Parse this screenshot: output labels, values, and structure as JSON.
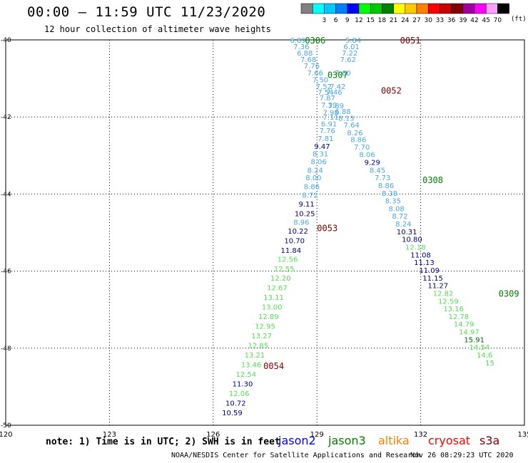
{
  "header": {
    "title": "00:00 – 11:59 UTC 11/23/2020",
    "subtitle": "12 hour collection of altimeter wave heights"
  },
  "colorbar": {
    "units": "(ft)",
    "bins": [
      {
        "label": "",
        "color": "#808080"
      },
      {
        "label": "3",
        "color": "#00ffff"
      },
      {
        "label": "6",
        "color": "#00c8ff"
      },
      {
        "label": "9",
        "color": "#0080ff"
      },
      {
        "label": "12",
        "color": "#0000ff"
      },
      {
        "label": "15",
        "color": "#00ff00"
      },
      {
        "label": "18",
        "color": "#00c800"
      },
      {
        "label": "21",
        "color": "#008000"
      },
      {
        "label": "24",
        "color": "#ffff00"
      },
      {
        "label": "27",
        "color": "#ffc800"
      },
      {
        "label": "30",
        "color": "#ff8000"
      },
      {
        "label": "33",
        "color": "#ff0000"
      },
      {
        "label": "36",
        "color": "#c80000"
      },
      {
        "label": "39",
        "color": "#800000"
      },
      {
        "label": "42",
        "color": "#a000a0"
      },
      {
        "label": "45",
        "color": "#ff00ff"
      },
      {
        "label": "70",
        "color": "#ffa0ff"
      },
      {
        "label": "",
        "color": "#000000"
      }
    ]
  },
  "map_axes": {
    "lon_labels": [
      "120",
      "123",
      "126",
      "129",
      "132",
      "135"
    ],
    "lon_values": [
      120,
      123,
      126,
      129,
      132,
      135
    ],
    "lat_labels": [
      "-40",
      "-42",
      "-44",
      "-46",
      "-48",
      "-50"
    ],
    "lat_values": [
      -40,
      -42,
      -44,
      -46,
      -48,
      -50
    ]
  },
  "tracks": [
    {
      "id": "t1",
      "color": "#4aa8e0",
      "points": [
        {
          "lon": 128.45,
          "lat": -40.0,
          "v": "6.89"
        },
        {
          "lon": 128.55,
          "lat": -40.17,
          "v": "7.36"
        },
        {
          "lon": 128.65,
          "lat": -40.33,
          "v": "6.88"
        },
        {
          "lon": 128.75,
          "lat": -40.5,
          "v": "7.68"
        },
        {
          "lon": 128.85,
          "lat": -40.67,
          "v": "7.76"
        },
        {
          "lon": 128.95,
          "lat": -40.85,
          "v": "7.66"
        },
        {
          "lon": 129.1,
          "lat": -41.03,
          "v": "7.50"
        },
        {
          "lon": 129.2,
          "lat": -41.2,
          "v": "7.52"
        },
        {
          "lon": 129.25,
          "lat": -41.35,
          "v": "7.54"
        },
        {
          "lon": 129.3,
          "lat": -41.5,
          "v": "7.87"
        },
        {
          "lon": 129.35,
          "lat": -41.68,
          "v": "7.39"
        },
        {
          "lon": 129.4,
          "lat": -41.88,
          "v": "7.98"
        },
        {
          "lon": 129.4,
          "lat": -42.0,
          "v": "7.11"
        },
        {
          "lon": 129.35,
          "lat": -42.17,
          "v": "6.91"
        },
        {
          "lon": 129.3,
          "lat": -42.35,
          "v": "7.76"
        },
        {
          "lon": 129.25,
          "lat": -42.55,
          "v": "7.81"
        }
      ]
    },
    {
      "id": "t1b",
      "color": "#000080",
      "points": [
        {
          "lon": 129.15,
          "lat": -42.75,
          "v": "9.47"
        }
      ]
    },
    {
      "id": "t1c",
      "color": "#4aa8e0",
      "points": [
        {
          "lon": 129.1,
          "lat": -42.95,
          "v": "8.31"
        },
        {
          "lon": 129.05,
          "lat": -43.15,
          "v": "8.06"
        },
        {
          "lon": 128.95,
          "lat": -43.37,
          "v": "8.24"
        },
        {
          "lon": 128.9,
          "lat": -43.57,
          "v": "8.00"
        },
        {
          "lon": 128.85,
          "lat": -43.8,
          "v": "8.86"
        },
        {
          "lon": 128.8,
          "lat": -44.02,
          "v": "8.72"
        }
      ]
    },
    {
      "id": "t2",
      "color": "#000080",
      "points": [
        {
          "lon": 128.7,
          "lat": -44.25,
          "v": "9.11"
        },
        {
          "lon": 128.65,
          "lat": -44.5,
          "v": "10.25"
        }
      ]
    },
    {
      "id": "t2b",
      "color": "#4aa8e0",
      "points": [
        {
          "lon": 128.55,
          "lat": -44.72,
          "v": "8.96"
        }
      ]
    },
    {
      "id": "t2c",
      "color": "#000080",
      "points": [
        {
          "lon": 128.45,
          "lat": -44.95,
          "v": "10.22"
        },
        {
          "lon": 128.35,
          "lat": -45.2,
          "v": "10.70"
        },
        {
          "lon": 128.25,
          "lat": -45.45,
          "v": "11.84"
        }
      ]
    },
    {
      "id": "t3",
      "color": "#55dd55",
      "points": [
        {
          "lon": 128.15,
          "lat": -45.68,
          "v": "12.56"
        },
        {
          "lon": 128.05,
          "lat": -45.93,
          "v": "12.55"
        },
        {
          "lon": 127.95,
          "lat": -46.17,
          "v": "12.20"
        },
        {
          "lon": 127.85,
          "lat": -46.42,
          "v": "12.67"
        },
        {
          "lon": 127.75,
          "lat": -46.67,
          "v": "13.11"
        },
        {
          "lon": 127.7,
          "lat": -46.92,
          "v": "13.00"
        },
        {
          "lon": 127.6,
          "lat": -47.17,
          "v": "12.89"
        },
        {
          "lon": 127.5,
          "lat": -47.42,
          "v": "12.95"
        },
        {
          "lon": 127.4,
          "lat": -47.67,
          "v": "13.27"
        },
        {
          "lon": 127.3,
          "lat": -47.92,
          "v": "12.85"
        },
        {
          "lon": 127.2,
          "lat": -48.17,
          "v": "13.21"
        },
        {
          "lon": 127.1,
          "lat": -48.42,
          "v": "13.46"
        },
        {
          "lon": 126.95,
          "lat": -48.67,
          "v": "12.54"
        }
      ]
    },
    {
      "id": "t3b",
      "color": "#000080",
      "points": [
        {
          "lon": 126.85,
          "lat": -48.92,
          "v": "11.30"
        }
      ]
    },
    {
      "id": "t3c",
      "color": "#55dd55",
      "points": [
        {
          "lon": 126.75,
          "lat": -49.17,
          "v": "12.06"
        }
      ]
    },
    {
      "id": "t3d",
      "color": "#000080",
      "points": [
        {
          "lon": 126.65,
          "lat": -49.42,
          "v": "10.72"
        },
        {
          "lon": 126.55,
          "lat": -49.67,
          "v": "10.59"
        }
      ]
    },
    {
      "id": "t4",
      "color": "#4aa8e0",
      "points": [
        {
          "lon": 130.05,
          "lat": -40.0,
          "v": "5.84"
        },
        {
          "lon": 130.0,
          "lat": -40.17,
          "v": "6.01"
        },
        {
          "lon": 129.95,
          "lat": -40.33,
          "v": "7.22"
        },
        {
          "lon": 129.9,
          "lat": -40.5,
          "v": "7.62"
        },
        {
          "lon": 129.75,
          "lat": -40.85,
          "v": "7.60"
        },
        {
          "lon": 129.6,
          "lat": -41.2,
          "v": "7.42"
        },
        {
          "lon": 129.5,
          "lat": -41.35,
          "v": "7.46"
        },
        {
          "lon": 129.55,
          "lat": -41.7,
          "v": "7.89"
        },
        {
          "lon": 129.75,
          "lat": -41.85,
          "v": "6.88"
        },
        {
          "lon": 129.85,
          "lat": -42.02,
          "v": "8.13"
        },
        {
          "lon": 130.0,
          "lat": -42.2,
          "v": "7.64"
        },
        {
          "lon": 130.1,
          "lat": -42.4,
          "v": "8.26"
        },
        {
          "lon": 130.2,
          "lat": -42.58,
          "v": "8.86"
        },
        {
          "lon": 130.3,
          "lat": -42.77,
          "v": "7.70"
        },
        {
          "lon": 130.45,
          "lat": -42.97,
          "v": "8.06"
        }
      ]
    },
    {
      "id": "t4b",
      "color": "#000080",
      "points": [
        {
          "lon": 130.6,
          "lat": -43.17,
          "v": "9.29"
        }
      ]
    },
    {
      "id": "t4c",
      "color": "#4aa8e0",
      "points": [
        {
          "lon": 130.75,
          "lat": -43.37,
          "v": "8.45"
        },
        {
          "lon": 130.9,
          "lat": -43.57,
          "v": "7.73"
        },
        {
          "lon": 131.0,
          "lat": -43.77,
          "v": "8.86"
        },
        {
          "lon": 131.1,
          "lat": -43.97,
          "v": "8.38"
        },
        {
          "lon": 131.2,
          "lat": -44.17,
          "v": "8.35"
        },
        {
          "lon": 131.3,
          "lat": -44.37,
          "v": "8.08"
        },
        {
          "lon": 131.4,
          "lat": -44.57,
          "v": "8.72"
        },
        {
          "lon": 131.5,
          "lat": -44.77,
          "v": "8.24"
        }
      ]
    },
    {
      "id": "t5",
      "color": "#000080",
      "points": [
        {
          "lon": 131.6,
          "lat": -44.97,
          "v": "10.31"
        },
        {
          "lon": 131.75,
          "lat": -45.17,
          "v": "10.80"
        }
      ]
    },
    {
      "id": "t5b",
      "color": "#55dd55",
      "points": [
        {
          "lon": 131.85,
          "lat": -45.37,
          "v": "12.18"
        }
      ]
    },
    {
      "id": "t5c",
      "color": "#000080",
      "points": [
        {
          "lon": 132.0,
          "lat": -45.57,
          "v": "11.08"
        },
        {
          "lon": 132.1,
          "lat": -45.77,
          "v": "11.13"
        },
        {
          "lon": 132.25,
          "lat": -45.97,
          "v": "11.09"
        },
        {
          "lon": 132.35,
          "lat": -46.17,
          "v": "11.15"
        },
        {
          "lon": 132.5,
          "lat": -46.37,
          "v": "11.27"
        }
      ]
    },
    {
      "id": "t6",
      "color": "#55dd55",
      "points": [
        {
          "lon": 132.65,
          "lat": -46.57,
          "v": "12.82"
        },
        {
          "lon": 132.8,
          "lat": -46.77,
          "v": "12.59"
        },
        {
          "lon": 132.95,
          "lat": -46.97,
          "v": "13.16"
        },
        {
          "lon": 133.1,
          "lat": -47.17,
          "v": "12.78"
        },
        {
          "lon": 133.25,
          "lat": -47.37,
          "v": "14.79"
        },
        {
          "lon": 133.4,
          "lat": -47.57,
          "v": "14.97"
        }
      ]
    },
    {
      "id": "t6b",
      "color": "#006400",
      "points": [
        {
          "lon": 133.55,
          "lat": -47.77,
          "v": "15.91"
        }
      ]
    },
    {
      "id": "t6c",
      "color": "#55dd55",
      "points": [
        {
          "lon": 133.7,
          "lat": -47.97,
          "v": "14.54"
        },
        {
          "lon": 133.85,
          "lat": -48.17,
          "v": "14.6"
        },
        {
          "lon": 134.0,
          "lat": -48.37,
          "v": "15"
        }
      ]
    }
  ],
  "time_labels": [
    {
      "text": "0306",
      "lon": 128.95,
      "lat": -40.0,
      "color": "#008000"
    },
    {
      "text": "0051",
      "lon": 131.7,
      "lat": -40.0,
      "color": "#800000"
    },
    {
      "text": "0307",
      "lon": 129.6,
      "lat": -40.9,
      "color": "#008000"
    },
    {
      "text": "0052",
      "lon": 131.15,
      "lat": -41.3,
      "color": "#800000"
    },
    {
      "text": "0308",
      "lon": 132.35,
      "lat": -43.62,
      "color": "#008000"
    },
    {
      "text": "0053",
      "lon": 129.3,
      "lat": -44.87,
      "color": "#800000"
    },
    {
      "text": "0309",
      "lon": 134.55,
      "lat": -46.57,
      "color": "#008000"
    },
    {
      "text": "0054",
      "lon": 127.75,
      "lat": -48.45,
      "color": "#800000"
    }
  ],
  "footer": {
    "note": "note: 1) Time is in UTC; 2) SWH is in feet",
    "credit": "NOAA/NESDIS Center for Satellite Applications and Research",
    "timestamp": "Nov 26 08:29:23 UTC 2020",
    "satellites": [
      {
        "name": "jason2",
        "color": "#0000ff"
      },
      {
        "name": "jason3",
        "color": "#008000"
      },
      {
        "name": "altika",
        "color": "#ff8000"
      },
      {
        "name": "cryosat",
        "color": "#ff0000"
      },
      {
        "name": "s3a",
        "color": "#800000"
      }
    ]
  }
}
